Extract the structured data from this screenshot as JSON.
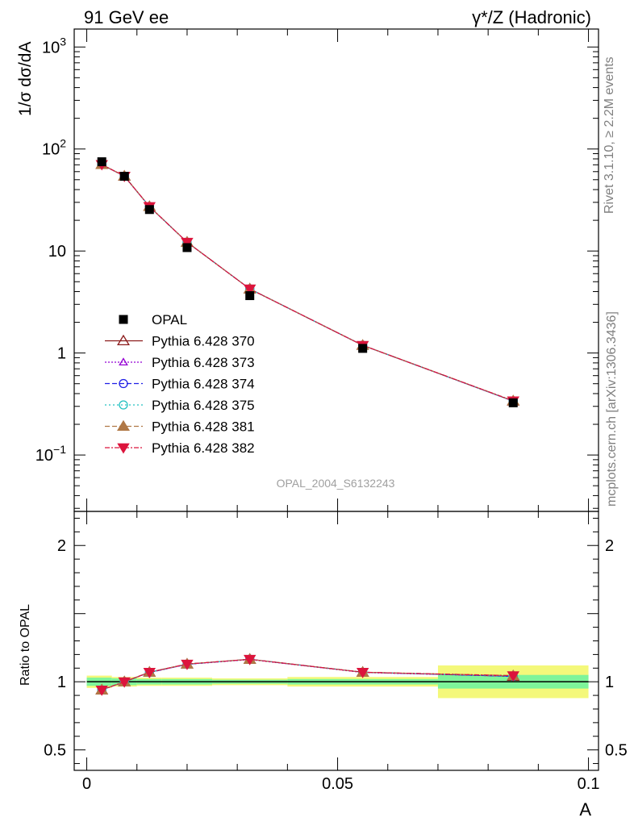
{
  "header": {
    "left_title": "91 GeV ee",
    "right_title": "γ*/Z (Hadronic)"
  },
  "side_text": {
    "rivet": "Rivet 3.1.10, ≥ 2.2M events",
    "mcplots": "mcplots.cern.ch [arXiv:1306.3436]"
  },
  "watermark": "OPAL_2004_S6132243",
  "main_panel": {
    "ylabel": "1/σ dσ/dA",
    "yscale": "log",
    "ylim": [
      0.028,
      1500
    ],
    "yticks": [
      {
        "v": 0.1,
        "base": "10",
        "exp": "−1"
      },
      {
        "v": 1,
        "base": "1",
        "exp": ""
      },
      {
        "v": 10,
        "base": "10",
        "exp": ""
      },
      {
        "v": 100,
        "base": "10",
        "exp": "2"
      },
      {
        "v": 1000,
        "base": "10",
        "exp": "3"
      }
    ]
  },
  "ratio_panel": {
    "ylabel": "Ratio to OPAL",
    "ylim": [
      0.35,
      2.25
    ],
    "yticks": [
      {
        "v": 0.5,
        "label": "0.5"
      },
      {
        "v": 1,
        "label": "1"
      },
      {
        "v": 2,
        "label": "2"
      }
    ]
  },
  "xaxis": {
    "xlabel": "A",
    "xlim": [
      -0.0025,
      0.102
    ],
    "xticks": [
      {
        "v": 0,
        "label": "0"
      },
      {
        "v": 0.05,
        "label": "0.05"
      },
      {
        "v": 0.1,
        "label": "0.1"
      }
    ]
  },
  "chart_data": {
    "type": "line",
    "x": [
      0.003,
      0.0075,
      0.0125,
      0.02,
      0.0325,
      0.055,
      0.085
    ],
    "bin_edges": [
      0.0,
      0.005,
      0.01,
      0.015,
      0.025,
      0.04,
      0.07,
      0.1
    ],
    "data": {
      "name": "OPAL",
      "values": [
        75,
        54,
        25.5,
        10.8,
        3.65,
        1.11,
        0.325
      ],
      "ratio_band_inner": [
        0.03,
        0.025,
        0.02,
        0.02,
        0.015,
        0.02,
        0.05
      ],
      "ratio_band_outer": [
        0.045,
        0.035,
        0.03,
        0.03,
        0.025,
        0.035,
        0.12
      ]
    },
    "series": [
      {
        "name": "Pythia 6.428 370",
        "color": "#8b1a1a",
        "marker": "triangle-open",
        "dash": "",
        "values": [
          70.5,
          54.2,
          27.3,
          12.2,
          4.25,
          1.19,
          0.338
        ],
        "ratio": [
          0.94,
          1.0,
          1.07,
          1.13,
          1.165,
          1.07,
          1.04
        ]
      },
      {
        "name": "Pythia 6.428 373",
        "color": "#9400d3",
        "marker": "triangle-open-small",
        "dash": "2,2",
        "values": [
          70.3,
          54.0,
          27.2,
          12.2,
          4.24,
          1.19,
          0.338
        ],
        "ratio": [
          0.94,
          1.0,
          1.068,
          1.128,
          1.163,
          1.068,
          1.04
        ]
      },
      {
        "name": "Pythia 6.428 374",
        "color": "#1e1ee6",
        "marker": "circle-open",
        "dash": "6,3",
        "values": [
          70.4,
          54.1,
          27.2,
          12.2,
          4.25,
          1.19,
          0.338
        ],
        "ratio": [
          0.94,
          1.0,
          1.068,
          1.128,
          1.165,
          1.07,
          1.04
        ]
      },
      {
        "name": "Pythia 6.428 375",
        "color": "#20c0c0",
        "marker": "circle-open",
        "dash": "2,3",
        "values": [
          70.4,
          54.1,
          27.3,
          12.2,
          4.25,
          1.19,
          0.338
        ],
        "ratio": [
          0.94,
          1.0,
          1.07,
          1.13,
          1.165,
          1.07,
          1.042
        ]
      },
      {
        "name": "Pythia 6.428 381",
        "color": "#b07846",
        "marker": "triangle-filled",
        "dash": "6,3",
        "values": [
          70.5,
          54.2,
          27.3,
          12.2,
          4.25,
          1.19,
          0.34
        ],
        "ratio": [
          0.94,
          1.0,
          1.07,
          1.13,
          1.165,
          1.07,
          1.045
        ]
      },
      {
        "name": "Pythia 6.428 382",
        "color": "#dc143c",
        "marker": "triangle-down-filled",
        "dash": "6,2,2,2",
        "values": [
          70.5,
          54.2,
          27.3,
          12.2,
          4.25,
          1.19,
          0.34
        ],
        "ratio": [
          0.94,
          1.0,
          1.07,
          1.13,
          1.165,
          1.07,
          1.045
        ]
      }
    ],
    "legend_position": "middle-left"
  }
}
